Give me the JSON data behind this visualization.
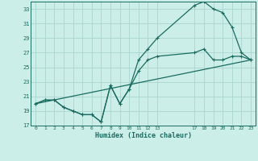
{
  "xlabel": "Humidex (Indice chaleur)",
  "bg_color": "#cceee8",
  "grid_color": "#aad4ce",
  "line_color": "#1a6b60",
  "xlim": [
    -0.5,
    23.5
  ],
  "ylim": [
    17,
    34
  ],
  "yticks": [
    17,
    19,
    21,
    23,
    25,
    27,
    29,
    31,
    33
  ],
  "xtick_positions": [
    0,
    1,
    2,
    3,
    4,
    5,
    6,
    7,
    8,
    9,
    10,
    11,
    12,
    13,
    17,
    18,
    19,
    20,
    21,
    22,
    23
  ],
  "xtick_labels": [
    "0",
    "1",
    "2",
    "3",
    "4",
    "5",
    "6",
    "7",
    "8",
    "9",
    "10",
    "11",
    "12",
    "13",
    "17",
    "18",
    "19",
    "20",
    "21",
    "22",
    "23"
  ],
  "series1_x": [
    0,
    1,
    2,
    3,
    4,
    5,
    6,
    7,
    8,
    9,
    10,
    11,
    12,
    13,
    17,
    18,
    19,
    20,
    21,
    22,
    23
  ],
  "series1_y": [
    20,
    20.5,
    20.5,
    19.5,
    19,
    18.5,
    18.5,
    17.5,
    22.5,
    20,
    22,
    26,
    27.5,
    29,
    33.5,
    34,
    33,
    32.5,
    30.5,
    27,
    26
  ],
  "series2_x": [
    0,
    1,
    2,
    3,
    4,
    5,
    6,
    7,
    8,
    9,
    10,
    11,
    12,
    13,
    17,
    18,
    19,
    20,
    21,
    22,
    23
  ],
  "series2_y": [
    20,
    20.5,
    20.5,
    19.5,
    19,
    18.5,
    18.5,
    17.5,
    22.5,
    20,
    22,
    24.5,
    26,
    26.5,
    27,
    27.5,
    26,
    26,
    26.5,
    26.5,
    26
  ],
  "series3_x": [
    0,
    23
  ],
  "series3_y": [
    20,
    26
  ]
}
